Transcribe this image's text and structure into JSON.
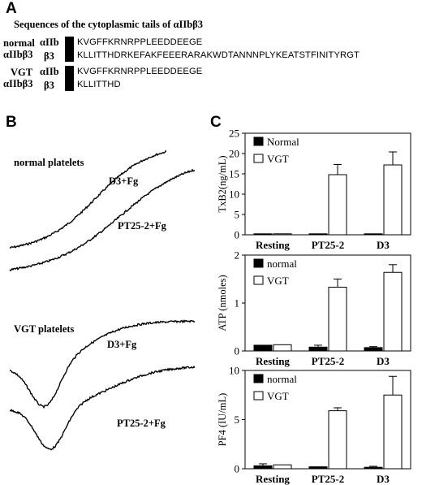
{
  "panelA": {
    "letter": "A",
    "title": "Sequences of the cytoplasmic tails of αIIbβ3",
    "groups": [
      {
        "name": "normal",
        "integrin": "αIIbβ3",
        "rows": [
          {
            "chain": "αIIb",
            "sequence": "KVGFFKRNRPPLEEDDEEGE"
          },
          {
            "chain": "β3",
            "sequence": "KLLITTHDRKEFAKFEEERARAKWDTANNNPLYKEATSTFINITYRGT"
          }
        ]
      },
      {
        "name": "VGT",
        "integrin": "αIIbβ3",
        "rows": [
          {
            "chain": "αIIb",
            "sequence": "KVGFFKRNRPPLEEDDEEGE"
          },
          {
            "chain": "β3",
            "sequence": "KLLITTHD"
          }
        ]
      }
    ]
  },
  "panelB": {
    "letter": "B",
    "traces": [
      {
        "title": "normal platelets",
        "curve_labels": [
          "D3+Fg",
          "PT25-2+Fg"
        ]
      },
      {
        "title": "VGT platelets",
        "curve_labels": [
          "D3+Fg",
          "PT25-2+Fg"
        ]
      }
    ]
  },
  "panelC": {
    "letter": "C"
  },
  "chart_data": [
    {
      "type": "bar",
      "categories": [
        "Resting",
        "PT25-2",
        "D3"
      ],
      "ylabel": "TxB2(ng/mL)",
      "ylim": [
        0,
        25
      ],
      "yticks": [
        0,
        5,
        10,
        15,
        20,
        25
      ],
      "legend_position": "top-left",
      "series": [
        {
          "name": "Normal",
          "color": "#000000",
          "values": [
            0.1,
            0.1,
            0.1
          ],
          "errors": [
            0,
            0,
            0
          ]
        },
        {
          "name": "VGT",
          "color": "#ffffff",
          "values": [
            0.2,
            14.8,
            17.2
          ],
          "errors": [
            0,
            2.5,
            3.2
          ]
        }
      ]
    },
    {
      "type": "bar",
      "categories": [
        "Resting",
        "PT25-2",
        "D3"
      ],
      "ylabel": "ATP (nmoles)",
      "ylim": [
        0,
        2
      ],
      "yticks": [
        0,
        1,
        2
      ],
      "legend_position": "top-left",
      "series": [
        {
          "name": "normal",
          "color": "#000000",
          "values": [
            0.12,
            0.08,
            0.07
          ],
          "errors": [
            0,
            0.04,
            0.02
          ]
        },
        {
          "name": "VGT",
          "color": "#ffffff",
          "values": [
            0.13,
            1.33,
            1.64
          ],
          "errors": [
            0,
            0.17,
            0.16
          ]
        }
      ]
    },
    {
      "type": "bar",
      "categories": [
        "Resting",
        "PT25-2",
        "D3"
      ],
      "ylabel": "PF4 (IU/mL)",
      "ylim": [
        0,
        10
      ],
      "yticks": [
        0,
        5,
        10
      ],
      "legend_position": "top-left",
      "series": [
        {
          "name": "normal",
          "color": "#000000",
          "values": [
            0.3,
            0.2,
            0.15
          ],
          "errors": [
            0.2,
            0,
            0.1
          ]
        },
        {
          "name": "VGT",
          "color": "#ffffff",
          "values": [
            0.4,
            5.9,
            7.5
          ],
          "errors": [
            0,
            0.3,
            1.9
          ]
        }
      ]
    }
  ]
}
